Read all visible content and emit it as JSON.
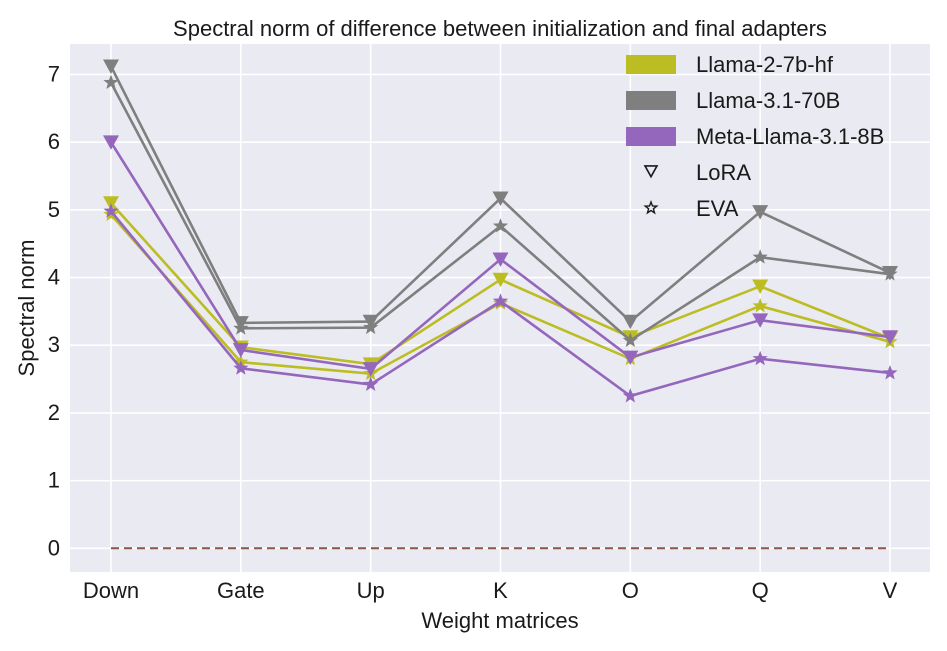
{
  "chart_data": {
    "type": "line",
    "title": "Spectral norm of difference between initialization and final adapters",
    "xlabel": "Weight matrices",
    "ylabel": "Spectral norm",
    "categories": [
      "Down",
      "Gate",
      "Up",
      "K",
      "O",
      "Q",
      "V"
    ],
    "ylim": [
      -0.35,
      7.45
    ],
    "yticks": [
      0,
      1,
      2,
      3,
      4,
      5,
      6,
      7
    ],
    "grid": true,
    "legend_position": "top-right",
    "series": [
      {
        "name": "Llama-2-7b-hf",
        "method": "LoRA",
        "color": "#bcbd22",
        "marker": "triangle-down",
        "values": [
          5.1,
          2.97,
          2.72,
          3.97,
          3.12,
          3.87,
          3.1
        ]
      },
      {
        "name": "Llama-2-7b-hf",
        "method": "EVA",
        "color": "#bcbd22",
        "marker": "star",
        "values": [
          4.93,
          2.75,
          2.58,
          3.62,
          2.8,
          3.58,
          3.05
        ]
      },
      {
        "name": "Llama-3.1-70B",
        "method": "LoRA",
        "color": "#7f7f7f",
        "marker": "triangle-down",
        "values": [
          7.12,
          3.33,
          3.35,
          5.17,
          3.35,
          4.97,
          4.07
        ]
      },
      {
        "name": "Llama-3.1-70B",
        "method": "EVA",
        "color": "#7f7f7f",
        "marker": "star",
        "values": [
          6.88,
          3.25,
          3.26,
          4.76,
          3.07,
          4.3,
          4.05
        ]
      },
      {
        "name": "Meta-Llama-3.1-8B",
        "method": "LoRA",
        "color": "#9467bd",
        "marker": "triangle-down",
        "values": [
          6.0,
          2.93,
          2.65,
          4.27,
          2.82,
          3.37,
          3.12
        ]
      },
      {
        "name": "Meta-Llama-3.1-8B",
        "method": "EVA",
        "color": "#9467bd",
        "marker": "star",
        "values": [
          4.98,
          2.66,
          2.42,
          3.65,
          2.25,
          2.8,
          2.59
        ]
      }
    ],
    "baseline": {
      "value": 0,
      "color": "#8c564b",
      "style": "dashed"
    },
    "legend": [
      {
        "label": "Llama-2-7b-hf",
        "kind": "patch",
        "color": "#bcbd22"
      },
      {
        "label": "Llama-3.1-70B",
        "kind": "patch",
        "color": "#7f7f7f"
      },
      {
        "label": "Meta-Llama-3.1-8B",
        "kind": "patch",
        "color": "#9467bd"
      },
      {
        "label": "LoRA",
        "kind": "marker",
        "marker": "triangle-down"
      },
      {
        "label": "EVA",
        "kind": "marker",
        "marker": "star"
      }
    ],
    "plot_bg_color": "#eaeaf2",
    "grid_color": "#ffffff"
  }
}
